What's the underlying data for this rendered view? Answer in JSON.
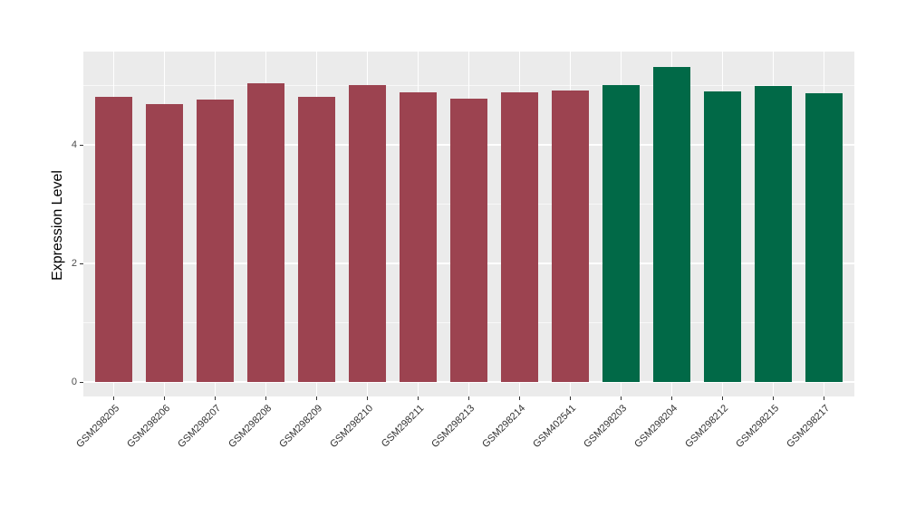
{
  "figure": {
    "background": "#FFFFFF",
    "panel_background": "#EBEBEB",
    "gridline_color": "#FFFFFF",
    "tick_mark_color": "#333333",
    "y_axis_text_color": "#4D4D4D",
    "x_axis_text_color": "#333333",
    "axis_title_color": "#000000"
  },
  "chart_data": {
    "type": "bar",
    "title": "",
    "xlabel": "",
    "ylabel": "Expression Level",
    "legend": "none",
    "grid": true,
    "x_tick_angle": 45,
    "categories": [
      "GSM298205",
      "GSM298206",
      "GSM298207",
      "GSM298208",
      "GSM298209",
      "GSM298210",
      "GSM298211",
      "GSM298213",
      "GSM298214",
      "GSM402541",
      "GSM298203",
      "GSM298204",
      "GSM298212",
      "GSM298215",
      "GSM298217"
    ],
    "values": [
      4.82,
      4.7,
      4.77,
      5.04,
      4.82,
      5.01,
      4.89,
      4.79,
      4.89,
      4.93,
      5.01,
      5.32,
      4.91,
      5.0,
      4.87
    ],
    "groups": [
      0,
      0,
      0,
      0,
      0,
      0,
      0,
      0,
      0,
      0,
      1,
      1,
      1,
      1,
      1
    ],
    "group_colors": [
      "#9C4350",
      "#016947"
    ],
    "y_axis": {
      "ticks": [
        0,
        2,
        4
      ],
      "tick_labels": [
        "0",
        "2",
        "4"
      ],
      "minor_ticks": [
        1,
        3,
        5
      ],
      "ylim": [
        -0.24,
        5.58
      ]
    }
  }
}
